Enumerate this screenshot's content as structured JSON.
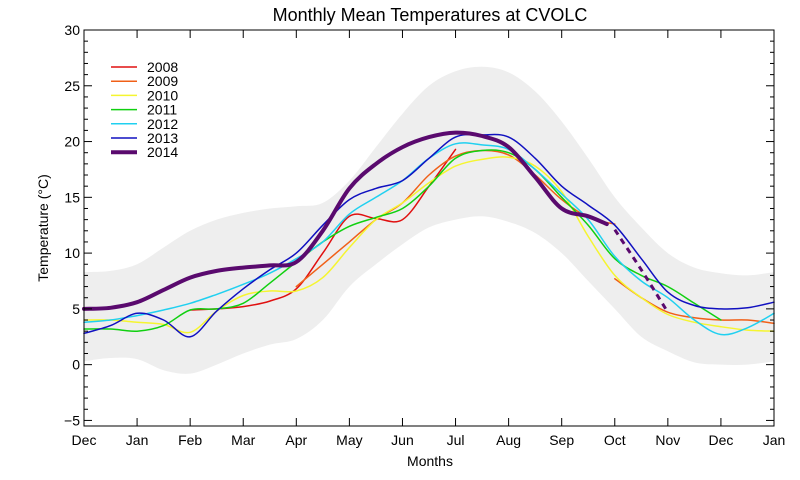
{
  "chart_data": {
    "type": "line",
    "title": "Monthly Mean Temperatures at CVOLC",
    "xlabel": "Months",
    "ylabel": "Temperature (°C)",
    "xlim": [
      0,
      13
    ],
    "ylim": [
      -5.5,
      30
    ],
    "x_ticks": [
      {
        "x": 0,
        "label": "Dec"
      },
      {
        "x": 1,
        "label": "Jan"
      },
      {
        "x": 2,
        "label": "Feb"
      },
      {
        "x": 3,
        "label": "Mar"
      },
      {
        "x": 4,
        "label": "Apr"
      },
      {
        "x": 5,
        "label": "May"
      },
      {
        "x": 6,
        "label": "Jun"
      },
      {
        "x": 7,
        "label": "Jul"
      },
      {
        "x": 8,
        "label": "Aug"
      },
      {
        "x": 9,
        "label": "Sep"
      },
      {
        "x": 10,
        "label": "Oct"
      },
      {
        "x": 11,
        "label": "Nov"
      },
      {
        "x": 12,
        "label": "Dec"
      },
      {
        "x": 13,
        "label": "Jan"
      }
    ],
    "y_ticks": [
      {
        "y": -5,
        "label": "−5"
      },
      {
        "y": 0,
        "label": "0"
      },
      {
        "y": 5,
        "label": "5"
      },
      {
        "y": 10,
        "label": "10"
      },
      {
        "y": 15,
        "label": "15"
      },
      {
        "y": 20,
        "label": "20"
      },
      {
        "y": 25,
        "label": "25"
      },
      {
        "y": 30,
        "label": "30"
      }
    ],
    "band": {
      "color": "#eeeeee",
      "x": [
        0,
        0.5,
        1,
        1.5,
        2,
        2.5,
        3,
        3.5,
        4,
        4.5,
        5,
        5.5,
        6,
        6.5,
        7,
        7.5,
        8,
        8.5,
        9,
        9.5,
        10,
        10.5,
        11,
        11.5,
        12,
        12.5,
        13
      ],
      "upper": [
        8.3,
        8.4,
        9.0,
        10.5,
        12.0,
        13.0,
        13.6,
        14.0,
        14.2,
        14.5,
        16.5,
        19.5,
        22.5,
        25.0,
        26.3,
        26.7,
        26.2,
        24.5,
        21.8,
        18.5,
        15.0,
        12.3,
        10.0,
        8.7,
        8.2,
        8.0,
        8.3
      ],
      "lower": [
        0.3,
        0.6,
        0.5,
        -0.5,
        -0.8,
        0.0,
        1.0,
        1.8,
        2.3,
        4.0,
        7.0,
        9.0,
        10.8,
        12.3,
        13.0,
        13.3,
        12.8,
        11.8,
        10.0,
        7.5,
        5.0,
        2.5,
        1.2,
        0.2,
        0.0,
        0.0,
        0.3
      ]
    },
    "series": [
      {
        "name": "2008",
        "color": "#e01010",
        "width": 1.5,
        "points": [
          [
            2.0,
            4.9
          ],
          [
            2.5,
            5.0
          ],
          [
            3.0,
            5.2
          ],
          [
            3.5,
            5.7
          ],
          [
            4.0,
            6.8
          ],
          [
            4.5,
            10.0
          ],
          [
            5.0,
            13.3
          ],
          [
            5.5,
            13.1
          ],
          [
            6.0,
            13.0
          ],
          [
            6.5,
            16.0
          ],
          [
            7.0,
            19.3
          ]
        ]
      },
      {
        "name": "2009",
        "color": "#f06018",
        "width": 1.5,
        "points": [
          [
            4.0,
            7.0
          ],
          [
            4.5,
            9.0
          ],
          [
            5.0,
            11.0
          ],
          [
            5.5,
            13.0
          ],
          [
            6.0,
            14.5
          ],
          [
            6.5,
            17.0
          ],
          [
            7.0,
            18.7
          ],
          [
            7.5,
            19.2
          ],
          [
            8.0,
            18.8
          ],
          [
            8.5,
            17.0
          ],
          [
            9.0,
            14.8
          ],
          [
            9.5,
            13.2
          ],
          [
            10.0,
            12.6
          ]
        ]
      },
      {
        "name": "2009b",
        "color": "#f06018",
        "width": 1.5,
        "points": [
          [
            10.0,
            7.7
          ],
          [
            10.5,
            6.0
          ],
          [
            11.0,
            4.7
          ],
          [
            11.5,
            4.2
          ],
          [
            12.0,
            4.0
          ],
          [
            12.5,
            4.0
          ],
          [
            13.0,
            3.7
          ]
        ]
      },
      {
        "name": "2010",
        "color": "#f5f530",
        "width": 1.5,
        "points": [
          [
            0.0,
            4.0
          ],
          [
            0.5,
            4.0
          ],
          [
            1.0,
            3.8
          ],
          [
            1.5,
            3.6
          ],
          [
            2.0,
            2.9
          ],
          [
            2.5,
            4.8
          ],
          [
            3.0,
            6.2
          ],
          [
            3.5,
            6.6
          ],
          [
            4.0,
            6.6
          ],
          [
            4.5,
            7.8
          ],
          [
            5.0,
            10.5
          ],
          [
            5.5,
            13.0
          ],
          [
            6.0,
            14.5
          ],
          [
            6.5,
            16.3
          ],
          [
            7.0,
            17.8
          ],
          [
            7.5,
            18.4
          ],
          [
            8.0,
            18.6
          ],
          [
            8.5,
            17.8
          ],
          [
            9.0,
            15.5
          ],
          [
            9.5,
            11.5
          ],
          [
            10.0,
            8.0
          ],
          [
            10.5,
            6.0
          ],
          [
            11.0,
            4.5
          ],
          [
            11.5,
            3.8
          ],
          [
            12.0,
            3.4
          ],
          [
            12.5,
            3.1
          ],
          [
            13.0,
            3.0
          ]
        ]
      },
      {
        "name": "2011",
        "color": "#10d010",
        "width": 1.5,
        "points": [
          [
            0.0,
            3.2
          ],
          [
            0.5,
            3.2
          ],
          [
            1.0,
            3.0
          ],
          [
            1.5,
            3.5
          ],
          [
            2.0,
            4.9
          ],
          [
            2.5,
            5.0
          ],
          [
            3.0,
            5.5
          ],
          [
            3.5,
            7.3
          ],
          [
            4.0,
            9.2
          ],
          [
            4.5,
            11.0
          ],
          [
            5.0,
            12.4
          ],
          [
            5.5,
            13.2
          ],
          [
            6.0,
            14.0
          ],
          [
            6.5,
            16.0
          ],
          [
            7.0,
            18.5
          ],
          [
            7.5,
            19.2
          ],
          [
            8.0,
            19.0
          ],
          [
            8.5,
            17.5
          ],
          [
            9.0,
            15.0
          ],
          [
            9.5,
            12.5
          ],
          [
            10.0,
            9.5
          ],
          [
            10.5,
            8.0
          ],
          [
            11.0,
            7.0
          ],
          [
            11.5,
            5.5
          ],
          [
            12.0,
            4.0
          ]
        ]
      },
      {
        "name": "2012",
        "color": "#20d0f0",
        "width": 1.5,
        "points": [
          [
            0.0,
            3.8
          ],
          [
            0.5,
            4.0
          ],
          [
            1.0,
            4.4
          ],
          [
            1.5,
            4.9
          ],
          [
            2.0,
            5.5
          ],
          [
            2.5,
            6.3
          ],
          [
            3.0,
            7.2
          ],
          [
            3.5,
            8.2
          ],
          [
            4.0,
            9.5
          ],
          [
            4.5,
            11.0
          ],
          [
            5.0,
            13.5
          ],
          [
            5.5,
            15.0
          ],
          [
            6.0,
            16.5
          ],
          [
            6.5,
            18.5
          ],
          [
            7.0,
            19.8
          ],
          [
            7.5,
            19.7
          ],
          [
            8.0,
            19.3
          ],
          [
            8.5,
            17.5
          ],
          [
            9.0,
            15.3
          ],
          [
            9.5,
            13.0
          ],
          [
            10.0,
            9.7
          ],
          [
            10.5,
            7.5
          ],
          [
            11.0,
            6.0
          ],
          [
            11.5,
            4.0
          ],
          [
            12.0,
            2.7
          ],
          [
            12.5,
            3.3
          ],
          [
            13.0,
            4.6
          ]
        ]
      },
      {
        "name": "2013",
        "color": "#1010c0",
        "width": 1.5,
        "points": [
          [
            0.0,
            2.8
          ],
          [
            0.5,
            3.5
          ],
          [
            1.0,
            4.6
          ],
          [
            1.5,
            4.0
          ],
          [
            2.0,
            2.5
          ],
          [
            2.5,
            4.8
          ],
          [
            3.0,
            6.8
          ],
          [
            3.5,
            8.5
          ],
          [
            4.0,
            10.0
          ],
          [
            4.5,
            12.5
          ],
          [
            5.0,
            14.8
          ],
          [
            5.5,
            15.8
          ],
          [
            6.0,
            16.5
          ],
          [
            6.5,
            18.5
          ],
          [
            7.0,
            20.4
          ],
          [
            7.5,
            20.6
          ],
          [
            8.0,
            20.4
          ],
          [
            8.5,
            18.5
          ],
          [
            9.0,
            16.0
          ],
          [
            9.5,
            14.3
          ],
          [
            10.0,
            12.5
          ],
          [
            10.5,
            9.5
          ],
          [
            11.0,
            6.5
          ],
          [
            11.5,
            5.3
          ],
          [
            12.0,
            5.0
          ],
          [
            12.5,
            5.1
          ],
          [
            13.0,
            5.6
          ]
        ]
      },
      {
        "name": "2014",
        "color": "#5a0a6e",
        "width": 4,
        "points": [
          [
            0.0,
            5.0
          ],
          [
            0.5,
            5.1
          ],
          [
            1.0,
            5.6
          ],
          [
            1.5,
            6.7
          ],
          [
            2.0,
            7.8
          ],
          [
            2.5,
            8.4
          ],
          [
            3.0,
            8.7
          ],
          [
            3.5,
            8.9
          ],
          [
            4.0,
            9.2
          ],
          [
            4.5,
            12.0
          ],
          [
            5.0,
            15.8
          ],
          [
            5.5,
            18.0
          ],
          [
            6.0,
            19.5
          ],
          [
            6.5,
            20.4
          ],
          [
            7.0,
            20.8
          ],
          [
            7.5,
            20.5
          ],
          [
            8.0,
            19.5
          ],
          [
            8.5,
            16.8
          ],
          [
            9.0,
            14.0
          ],
          [
            9.5,
            13.3
          ],
          [
            9.85,
            12.6
          ]
        ]
      },
      {
        "name": "2014b",
        "color": "#5a0a6e",
        "width": 3,
        "dashed": true,
        "points": [
          [
            10.0,
            12.1
          ],
          [
            10.5,
            8.5
          ],
          [
            11.0,
            4.7
          ]
        ]
      }
    ],
    "legend": {
      "position": "top-left",
      "entries": [
        {
          "label": "2008",
          "color": "#e01010",
          "width": 1.5
        },
        {
          "label": "2009",
          "color": "#f06018",
          "width": 1.5
        },
        {
          "label": "2010",
          "color": "#f5f530",
          "width": 1.5
        },
        {
          "label": "2011",
          "color": "#10d010",
          "width": 1.5
        },
        {
          "label": "2012",
          "color": "#20d0f0",
          "width": 1.5
        },
        {
          "label": "2013",
          "color": "#1010c0",
          "width": 1.5
        },
        {
          "label": "2014",
          "color": "#5a0a6e",
          "width": 4
        }
      ]
    }
  }
}
